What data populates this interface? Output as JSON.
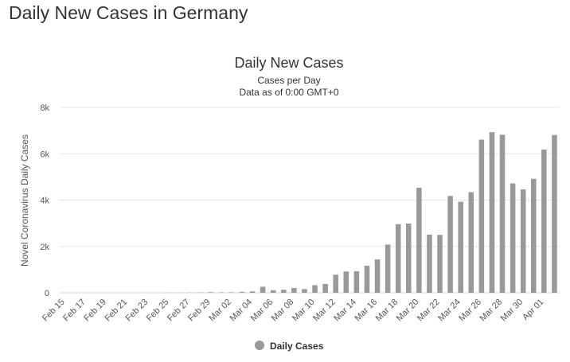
{
  "page": {
    "title": "Daily New Cases in Germany"
  },
  "colors": {
    "bar": "#999999",
    "grid": "#e6e6e6",
    "axis": "#ccd6eb"
  },
  "chart_data": {
    "type": "bar",
    "title": "Daily New Cases",
    "subtitle": "Cases per Day",
    "subtitle2": "Data as of 0:00 GMT+0",
    "xlabel": "",
    "ylabel": "Novel Coronavirus Daily Cases",
    "ylim": [
      0,
      8000
    ],
    "yticks": [
      0,
      2000,
      4000,
      6000,
      8000
    ],
    "ytick_labels": [
      "0",
      "2k",
      "4k",
      "6k",
      "8k"
    ],
    "grid": true,
    "legend": "bottom-center",
    "series": [
      {
        "name": "Daily Cases"
      }
    ],
    "categories": [
      "Feb 15",
      "Feb 16",
      "Feb 17",
      "Feb 18",
      "Feb 19",
      "Feb 20",
      "Feb 21",
      "Feb 22",
      "Feb 23",
      "Feb 24",
      "Feb 25",
      "Feb 26",
      "Feb 27",
      "Feb 28",
      "Feb 29",
      "Mar 01",
      "Mar 02",
      "Mar 03",
      "Mar 04",
      "Mar 05",
      "Mar 06",
      "Mar 07",
      "Mar 08",
      "Mar 09",
      "Mar 10",
      "Mar 11",
      "Mar 12",
      "Mar 13",
      "Mar 14",
      "Mar 15",
      "Mar 16",
      "Mar 17",
      "Mar 18",
      "Mar 19",
      "Mar 20",
      "Mar 21",
      "Mar 22",
      "Mar 23",
      "Mar 24",
      "Mar 25",
      "Mar 26",
      "Mar 27",
      "Mar 28",
      "Mar 29",
      "Mar 30",
      "Mar 31",
      "Apr 01",
      "Apr 02"
    ],
    "x_tick_labels": [
      "Feb 15",
      "Feb 17",
      "Feb 19",
      "Feb 21",
      "Feb 23",
      "Feb 25",
      "Feb 27",
      "Feb 29",
      "Mar 02",
      "Mar 04",
      "Mar 06",
      "Mar 08",
      "Mar 10",
      "Mar 12",
      "Mar 14",
      "Mar 16",
      "Mar 18",
      "Mar 20",
      "Mar 22",
      "Mar 24",
      "Mar 26",
      "Mar 28",
      "Mar 30",
      "Apr 01"
    ],
    "values": [
      0,
      0,
      0,
      0,
      0,
      0,
      0,
      0,
      0,
      0,
      2,
      5,
      10,
      12,
      25,
      18,
      20,
      40,
      60,
      260,
      110,
      130,
      210,
      160,
      330,
      380,
      780,
      920,
      930,
      1170,
      1440,
      2080,
      2960,
      2990,
      4530,
      2510,
      2500,
      4180,
      3930,
      4340,
      6610,
      6930,
      6820,
      4720,
      4460,
      4920,
      6180,
      6810
    ]
  }
}
